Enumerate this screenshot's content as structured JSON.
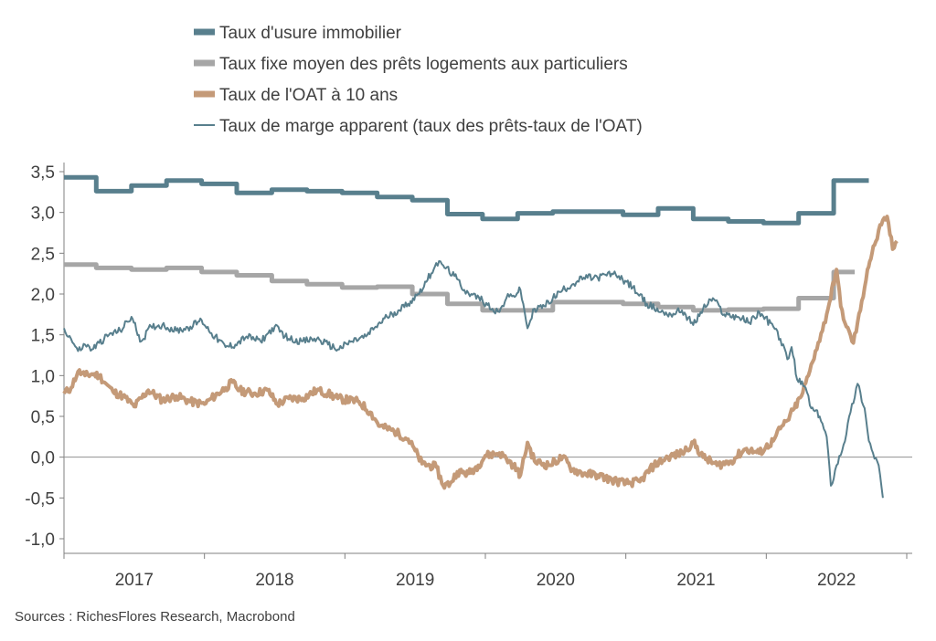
{
  "chart_data": {
    "type": "line",
    "ylim": [
      -1.0,
      3.5
    ],
    "y_ticks": [
      "3,5",
      "3,0",
      "2,5",
      "2,0",
      "1,5",
      "1,0",
      "0,5",
      "0,0",
      "-0,5",
      "-1,0"
    ],
    "x_categories": [
      "2017",
      "2018",
      "2019",
      "2020",
      "2021",
      "2022"
    ],
    "xlim": [
      2016.9,
      2022.9
    ],
    "legend_position": "top",
    "grid": false,
    "series": [
      {
        "name": "Taux d'usure immobilier",
        "color": "#587F8D",
        "style": "thick",
        "points": [
          [
            2016.9,
            3.43
          ],
          [
            2017.13,
            3.43
          ],
          [
            2017.13,
            3.26
          ],
          [
            2017.38,
            3.26
          ],
          [
            2017.38,
            3.33
          ],
          [
            2017.63,
            3.33
          ],
          [
            2017.63,
            3.39
          ],
          [
            2017.88,
            3.39
          ],
          [
            2017.88,
            3.35
          ],
          [
            2018.13,
            3.35
          ],
          [
            2018.13,
            3.24
          ],
          [
            2018.38,
            3.24
          ],
          [
            2018.38,
            3.28
          ],
          [
            2018.63,
            3.28
          ],
          [
            2018.63,
            3.26
          ],
          [
            2018.88,
            3.26
          ],
          [
            2018.88,
            3.24
          ],
          [
            2019.13,
            3.24
          ],
          [
            2019.13,
            3.19
          ],
          [
            2019.38,
            3.19
          ],
          [
            2019.38,
            3.15
          ],
          [
            2019.63,
            3.15
          ],
          [
            2019.63,
            2.98
          ],
          [
            2019.88,
            2.98
          ],
          [
            2019.88,
            2.92
          ],
          [
            2020.13,
            2.92
          ],
          [
            2020.13,
            2.99
          ],
          [
            2020.38,
            2.99
          ],
          [
            2020.38,
            3.01
          ],
          [
            2020.88,
            3.01
          ],
          [
            2020.88,
            2.97
          ],
          [
            2021.13,
            2.97
          ],
          [
            2021.13,
            3.05
          ],
          [
            2021.38,
            3.05
          ],
          [
            2021.38,
            2.92
          ],
          [
            2021.63,
            2.92
          ],
          [
            2021.63,
            2.89
          ],
          [
            2021.88,
            2.89
          ],
          [
            2021.88,
            2.87
          ],
          [
            2022.13,
            2.87
          ],
          [
            2022.13,
            2.99
          ],
          [
            2022.38,
            2.99
          ],
          [
            2022.38,
            3.39
          ],
          [
            2022.63,
            3.39
          ]
        ]
      },
      {
        "name": "Taux fixe moyen des prêts logements aux particuliers",
        "color": "#A6A6A6",
        "style": "thick",
        "points": [
          [
            2016.9,
            2.36
          ],
          [
            2017.13,
            2.36
          ],
          [
            2017.13,
            2.32
          ],
          [
            2017.38,
            2.32
          ],
          [
            2017.38,
            2.3
          ],
          [
            2017.63,
            2.3
          ],
          [
            2017.63,
            2.32
          ],
          [
            2017.88,
            2.32
          ],
          [
            2017.88,
            2.27
          ],
          [
            2018.13,
            2.27
          ],
          [
            2018.13,
            2.23
          ],
          [
            2018.38,
            2.23
          ],
          [
            2018.38,
            2.16
          ],
          [
            2018.63,
            2.16
          ],
          [
            2018.63,
            2.12
          ],
          [
            2018.88,
            2.12
          ],
          [
            2018.88,
            2.08
          ],
          [
            2019.13,
            2.08
          ],
          [
            2019.13,
            2.09
          ],
          [
            2019.38,
            2.09
          ],
          [
            2019.38,
            2.0
          ],
          [
            2019.63,
            2.0
          ],
          [
            2019.63,
            1.88
          ],
          [
            2019.88,
            1.88
          ],
          [
            2019.88,
            1.8
          ],
          [
            2020.38,
            1.8
          ],
          [
            2020.38,
            1.9
          ],
          [
            2020.88,
            1.9
          ],
          [
            2020.88,
            1.88
          ],
          [
            2021.13,
            1.88
          ],
          [
            2021.13,
            1.84
          ],
          [
            2021.38,
            1.84
          ],
          [
            2021.38,
            1.8
          ],
          [
            2021.63,
            1.8
          ],
          [
            2021.63,
            1.81
          ],
          [
            2021.88,
            1.81
          ],
          [
            2021.88,
            1.82
          ],
          [
            2022.13,
            1.82
          ],
          [
            2022.13,
            1.95
          ],
          [
            2022.38,
            1.95
          ],
          [
            2022.38,
            2.27
          ],
          [
            2022.53,
            2.27
          ]
        ]
      },
      {
        "name": "Taux de l'OAT à 10 ans",
        "color": "#C49A78",
        "style": "thick-noisy",
        "points": [
          [
            2016.9,
            0.78
          ],
          [
            2016.95,
            0.85
          ],
          [
            2017.0,
            1.05
          ],
          [
            2017.05,
            1.0
          ],
          [
            2017.1,
            1.02
          ],
          [
            2017.15,
            1.0
          ],
          [
            2017.2,
            0.9
          ],
          [
            2017.25,
            0.8
          ],
          [
            2017.32,
            0.75
          ],
          [
            2017.4,
            0.62
          ],
          [
            2017.5,
            0.82
          ],
          [
            2017.6,
            0.7
          ],
          [
            2017.7,
            0.75
          ],
          [
            2017.8,
            0.68
          ],
          [
            2017.9,
            0.65
          ],
          [
            2017.95,
            0.72
          ],
          [
            2018.05,
            0.85
          ],
          [
            2018.1,
            0.92
          ],
          [
            2018.15,
            0.82
          ],
          [
            2018.25,
            0.78
          ],
          [
            2018.35,
            0.82
          ],
          [
            2018.42,
            0.65
          ],
          [
            2018.5,
            0.72
          ],
          [
            2018.6,
            0.72
          ],
          [
            2018.7,
            0.82
          ],
          [
            2018.78,
            0.78
          ],
          [
            2018.85,
            0.72
          ],
          [
            2019.0,
            0.68
          ],
          [
            2019.08,
            0.55
          ],
          [
            2019.15,
            0.38
          ],
          [
            2019.25,
            0.32
          ],
          [
            2019.35,
            0.22
          ],
          [
            2019.4,
            0.08
          ],
          [
            2019.45,
            -0.08
          ],
          [
            2019.55,
            -0.12
          ],
          [
            2019.6,
            -0.35
          ],
          [
            2019.65,
            -0.32
          ],
          [
            2019.7,
            -0.18
          ],
          [
            2019.78,
            -0.2
          ],
          [
            2019.85,
            -0.1
          ],
          [
            2019.9,
            0.02
          ],
          [
            2020.0,
            0.05
          ],
          [
            2020.05,
            -0.02
          ],
          [
            2020.1,
            -0.1
          ],
          [
            2020.15,
            -0.22
          ],
          [
            2020.2,
            0.18
          ],
          [
            2020.25,
            -0.05
          ],
          [
            2020.35,
            -0.1
          ],
          [
            2020.45,
            0.0
          ],
          [
            2020.52,
            -0.15
          ],
          [
            2020.6,
            -0.2
          ],
          [
            2020.7,
            -0.22
          ],
          [
            2020.8,
            -0.28
          ],
          [
            2020.9,
            -0.32
          ],
          [
            2021.0,
            -0.3
          ],
          [
            2021.1,
            -0.1
          ],
          [
            2021.2,
            0.0
          ],
          [
            2021.3,
            0.05
          ],
          [
            2021.38,
            0.18
          ],
          [
            2021.45,
            0.0
          ],
          [
            2021.55,
            -0.1
          ],
          [
            2021.65,
            -0.05
          ],
          [
            2021.75,
            0.1
          ],
          [
            2021.85,
            0.05
          ],
          [
            2021.95,
            0.2
          ],
          [
            2022.0,
            0.35
          ],
          [
            2022.05,
            0.45
          ],
          [
            2022.1,
            0.6
          ],
          [
            2022.15,
            0.75
          ],
          [
            2022.2,
            1.0
          ],
          [
            2022.25,
            1.3
          ],
          [
            2022.3,
            1.55
          ],
          [
            2022.35,
            1.9
          ],
          [
            2022.4,
            2.3
          ],
          [
            2022.43,
            1.85
          ],
          [
            2022.47,
            1.6
          ],
          [
            2022.52,
            1.4
          ],
          [
            2022.57,
            1.8
          ],
          [
            2022.62,
            2.3
          ],
          [
            2022.67,
            2.6
          ],
          [
            2022.72,
            2.85
          ],
          [
            2022.76,
            2.95
          ],
          [
            2022.8,
            2.55
          ],
          [
            2022.83,
            2.65
          ]
        ]
      },
      {
        "name": "Taux de marge apparent (taux des prêts-taux de l'OAT)",
        "color": "#587F8D",
        "style": "thin-noisy",
        "points": [
          [
            2016.9,
            1.58
          ],
          [
            2016.95,
            1.45
          ],
          [
            2017.0,
            1.3
          ],
          [
            2017.05,
            1.38
          ],
          [
            2017.1,
            1.32
          ],
          [
            2017.15,
            1.4
          ],
          [
            2017.22,
            1.5
          ],
          [
            2017.3,
            1.55
          ],
          [
            2017.38,
            1.72
          ],
          [
            2017.45,
            1.42
          ],
          [
            2017.52,
            1.6
          ],
          [
            2017.6,
            1.62
          ],
          [
            2017.7,
            1.55
          ],
          [
            2017.8,
            1.6
          ],
          [
            2017.88,
            1.68
          ],
          [
            2017.95,
            1.52
          ],
          [
            2018.05,
            1.35
          ],
          [
            2018.12,
            1.38
          ],
          [
            2018.2,
            1.48
          ],
          [
            2018.3,
            1.42
          ],
          [
            2018.4,
            1.6
          ],
          [
            2018.5,
            1.45
          ],
          [
            2018.6,
            1.42
          ],
          [
            2018.7,
            1.45
          ],
          [
            2018.78,
            1.38
          ],
          [
            2018.85,
            1.32
          ],
          [
            2018.95,
            1.42
          ],
          [
            2019.05,
            1.48
          ],
          [
            2019.12,
            1.6
          ],
          [
            2019.2,
            1.72
          ],
          [
            2019.28,
            1.8
          ],
          [
            2019.35,
            1.88
          ],
          [
            2019.42,
            2.0
          ],
          [
            2019.48,
            2.15
          ],
          [
            2019.55,
            2.38
          ],
          [
            2019.6,
            2.35
          ],
          [
            2019.68,
            2.22
          ],
          [
            2019.75,
            2.05
          ],
          [
            2019.8,
            2.0
          ],
          [
            2019.88,
            1.92
          ],
          [
            2019.95,
            1.82
          ],
          [
            2020.0,
            1.78
          ],
          [
            2020.05,
            1.95
          ],
          [
            2020.1,
            1.98
          ],
          [
            2020.15,
            2.05
          ],
          [
            2020.2,
            1.58
          ],
          [
            2020.25,
            1.82
          ],
          [
            2020.32,
            1.85
          ],
          [
            2020.38,
            1.95
          ],
          [
            2020.45,
            2.05
          ],
          [
            2020.52,
            2.12
          ],
          [
            2020.6,
            2.2
          ],
          [
            2020.7,
            2.2
          ],
          [
            2020.8,
            2.25
          ],
          [
            2020.85,
            2.22
          ],
          [
            2020.95,
            2.08
          ],
          [
            2021.05,
            1.88
          ],
          [
            2021.15,
            1.78
          ],
          [
            2021.22,
            1.75
          ],
          [
            2021.3,
            1.8
          ],
          [
            2021.38,
            1.62
          ],
          [
            2021.45,
            1.82
          ],
          [
            2021.52,
            1.95
          ],
          [
            2021.6,
            1.75
          ],
          [
            2021.7,
            1.72
          ],
          [
            2021.78,
            1.65
          ],
          [
            2021.85,
            1.78
          ],
          [
            2021.95,
            1.6
          ],
          [
            2022.0,
            1.45
          ],
          [
            2022.05,
            1.2
          ],
          [
            2022.08,
            1.35
          ],
          [
            2022.12,
            0.95
          ],
          [
            2022.18,
            0.85
          ],
          [
            2022.22,
            0.6
          ],
          [
            2022.28,
            0.5
          ],
          [
            2022.33,
            0.25
          ],
          [
            2022.36,
            -0.35
          ],
          [
            2022.4,
            -0.1
          ],
          [
            2022.45,
            0.15
          ],
          [
            2022.5,
            0.55
          ],
          [
            2022.55,
            0.9
          ],
          [
            2022.6,
            0.6
          ],
          [
            2022.63,
            0.2
          ],
          [
            2022.66,
            0.05
          ],
          [
            2022.7,
            -0.1
          ],
          [
            2022.73,
            -0.5
          ]
        ]
      }
    ]
  },
  "source": "Sources : RichesFlores Research, Macrobond"
}
